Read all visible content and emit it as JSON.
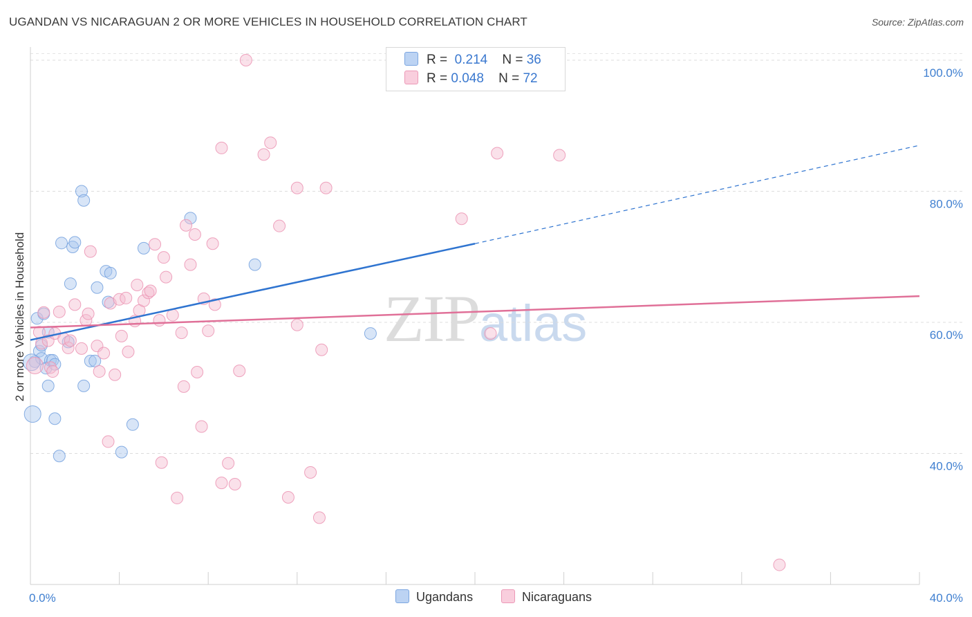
{
  "chart_data": {
    "type": "scatter",
    "title": "UGANDAN VS NICARAGUAN 2 OR MORE VEHICLES IN HOUSEHOLD CORRELATION CHART",
    "source": "Source: ZipAtlas.com",
    "xlabel": "",
    "ylabel": "2 or more Vehicles in Household",
    "xlim": [
      0,
      40
    ],
    "ylim": [
      20,
      102
    ],
    "x_tick_labels": [
      {
        "value": 0,
        "label": "0.0%"
      },
      {
        "value": 40,
        "label": "40.0%"
      }
    ],
    "y_tick_labels": [
      {
        "value": 40,
        "label": "40.0%"
      },
      {
        "value": 60,
        "label": "60.0%"
      },
      {
        "value": 80,
        "label": "80.0%"
      },
      {
        "value": 100,
        "label": "100.0%"
      }
    ],
    "watermark": {
      "zip": "ZIP",
      "atlas": "atlas"
    },
    "legend": {
      "r_label": "R =",
      "n_label": "N =",
      "entries": [
        {
          "name": "Ugandans",
          "r": "0.214",
          "n": "36"
        },
        {
          "name": "Nicaraguans",
          "r": "0.048",
          "n": "72"
        }
      ]
    },
    "series": [
      {
        "name": "Ugandans",
        "color": "#a9c6ee",
        "stroke": "#7aa5e0",
        "trend_color": "#2f74d0",
        "trend": {
          "x0": 0,
          "y0": 57.3,
          "x1": 20,
          "y1": 72.0,
          "dash_to_x": 40,
          "dash_to_y": 87.0
        },
        "points": [
          [
            0.1,
            46.0
          ],
          [
            0.2,
            54.0
          ],
          [
            0.3,
            60.6
          ],
          [
            0.4,
            55.6
          ],
          [
            0.5,
            56.5
          ],
          [
            0.5,
            54.5
          ],
          [
            0.6,
            61.3
          ],
          [
            0.7,
            53.0
          ],
          [
            0.8,
            58.5
          ],
          [
            0.8,
            50.3
          ],
          [
            0.9,
            54.2
          ],
          [
            1.0,
            54.2
          ],
          [
            1.1,
            53.6
          ],
          [
            1.1,
            45.3
          ],
          [
            1.3,
            39.6
          ],
          [
            1.4,
            72.1
          ],
          [
            1.8,
            65.9
          ],
          [
            1.7,
            57.0
          ],
          [
            1.9,
            71.5
          ],
          [
            2.0,
            72.2
          ],
          [
            2.3,
            80.0
          ],
          [
            2.4,
            78.6
          ],
          [
            2.4,
            50.3
          ],
          [
            2.7,
            54.1
          ],
          [
            2.9,
            54.1
          ],
          [
            3.0,
            65.3
          ],
          [
            3.4,
            67.8
          ],
          [
            3.5,
            63.1
          ],
          [
            3.6,
            67.5
          ],
          [
            4.1,
            40.2
          ],
          [
            4.6,
            44.4
          ],
          [
            5.1,
            71.3
          ],
          [
            7.2,
            75.9
          ],
          [
            10.1,
            68.8
          ],
          [
            15.3,
            58.3
          ],
          [
            0.05,
            53.9
          ]
        ]
      },
      {
        "name": "Nicaraguans",
        "color": "#f5bcd0",
        "stroke": "#ec98b6",
        "trend_color": "#e07098",
        "trend": {
          "x0": 0,
          "y0": 59.2,
          "x1": 40,
          "y1": 64.0
        },
        "points": [
          [
            0.2,
            53.4
          ],
          [
            0.4,
            58.5
          ],
          [
            0.5,
            56.8
          ],
          [
            0.6,
            61.5
          ],
          [
            0.8,
            57.2
          ],
          [
            0.9,
            53.1
          ],
          [
            1.0,
            52.5
          ],
          [
            1.1,
            58.3
          ],
          [
            1.3,
            61.6
          ],
          [
            1.5,
            57.5
          ],
          [
            1.7,
            56.1
          ],
          [
            1.8,
            57.2
          ],
          [
            2.0,
            62.7
          ],
          [
            2.3,
            56.0
          ],
          [
            2.5,
            60.3
          ],
          [
            2.6,
            61.3
          ],
          [
            2.7,
            70.8
          ],
          [
            3.0,
            56.4
          ],
          [
            3.1,
            52.5
          ],
          [
            3.3,
            55.3
          ],
          [
            3.5,
            41.8
          ],
          [
            3.6,
            62.9
          ],
          [
            3.8,
            52.0
          ],
          [
            4.0,
            63.5
          ],
          [
            4.1,
            57.9
          ],
          [
            4.3,
            63.7
          ],
          [
            4.4,
            55.5
          ],
          [
            4.7,
            60.2
          ],
          [
            4.8,
            65.7
          ],
          [
            4.9,
            61.8
          ],
          [
            5.1,
            63.3
          ],
          [
            5.3,
            64.5
          ],
          [
            5.4,
            64.8
          ],
          [
            5.6,
            71.9
          ],
          [
            5.8,
            60.3
          ],
          [
            5.9,
            38.6
          ],
          [
            6.0,
            69.9
          ],
          [
            6.1,
            66.9
          ],
          [
            6.4,
            61.1
          ],
          [
            6.6,
            33.2
          ],
          [
            6.8,
            58.4
          ],
          [
            6.9,
            50.2
          ],
          [
            7.0,
            74.8
          ],
          [
            7.2,
            68.8
          ],
          [
            7.4,
            73.4
          ],
          [
            7.5,
            52.4
          ],
          [
            7.7,
            44.1
          ],
          [
            7.8,
            63.6
          ],
          [
            8.0,
            58.7
          ],
          [
            8.2,
            72.0
          ],
          [
            8.3,
            62.7
          ],
          [
            8.6,
            86.6
          ],
          [
            8.6,
            35.5
          ],
          [
            8.9,
            38.5
          ],
          [
            9.2,
            35.3
          ],
          [
            9.4,
            52.6
          ],
          [
            9.7,
            100.0
          ],
          [
            10.5,
            85.6
          ],
          [
            10.8,
            87.4
          ],
          [
            11.2,
            74.7
          ],
          [
            11.6,
            33.3
          ],
          [
            12.0,
            80.5
          ],
          [
            12.0,
            59.6
          ],
          [
            12.6,
            37.1
          ],
          [
            13.0,
            30.2
          ],
          [
            13.1,
            55.8
          ],
          [
            13.3,
            80.5
          ],
          [
            19.4,
            75.8
          ],
          [
            20.7,
            58.3
          ],
          [
            21.0,
            85.8
          ],
          [
            23.8,
            85.5
          ],
          [
            33.7,
            23.0
          ]
        ]
      }
    ]
  }
}
